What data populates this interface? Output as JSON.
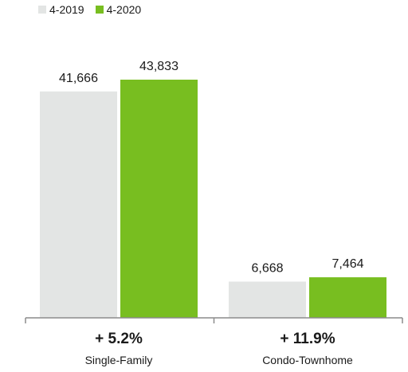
{
  "chart_data": {
    "type": "bar",
    "title": "",
    "xlabel": "",
    "ylabel": "",
    "categories": [
      "Single-Family",
      "Condo-Townhome"
    ],
    "change_labels": [
      "+ 5.2%",
      "+ 11.9%"
    ],
    "series": [
      {
        "name": "4-2019",
        "values": [
          41666,
          6668
        ],
        "value_labels": [
          "41,666",
          "6,668"
        ],
        "color": "#e3e5e4"
      },
      {
        "name": "4-2020",
        "values": [
          43833,
          7464
        ],
        "value_labels": [
          "43,833",
          "7,464"
        ],
        "color": "#78be20"
      }
    ],
    "ylim": [
      0,
      43833
    ],
    "grid": false,
    "legend_position": "top-left"
  }
}
